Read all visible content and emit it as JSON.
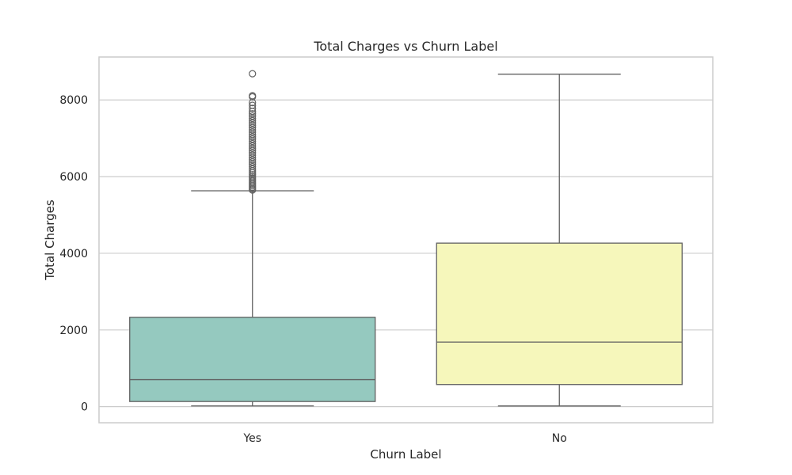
{
  "chart_data": {
    "type": "box",
    "title": "Total Charges vs Churn Label",
    "xlabel": "Churn Label",
    "ylabel": "Total Charges",
    "ylim": [
      -420,
      9120
    ],
    "yticks": [
      0,
      2000,
      4000,
      6000,
      8000
    ],
    "grid": true,
    "categories": [
      "Yes",
      "No"
    ],
    "colors": [
      "#95c9bf",
      "#f6f7bb"
    ],
    "line_color": "#616161",
    "boxes": [
      {
        "category": "Yes",
        "whisker_low": 19,
        "q1": 134,
        "median": 704,
        "q3": 2331,
        "whisker_high": 5630,
        "outliers": [
          5650,
          5680,
          5720,
          5760,
          5800,
          5840,
          5880,
          5920,
          5960,
          6000,
          6050,
          6100,
          6150,
          6200,
          6260,
          6320,
          6380,
          6440,
          6500,
          6560,
          6620,
          6680,
          6740,
          6800,
          6860,
          6920,
          6980,
          7040,
          7100,
          7160,
          7220,
          7280,
          7340,
          7400,
          7460,
          7520,
          7580,
          7640,
          7700,
          7780,
          7860,
          7930,
          8080,
          8110,
          8684
        ]
      },
      {
        "category": "No",
        "whisker_low": 18,
        "q1": 577,
        "median": 1684,
        "q3": 4265,
        "whisker_high": 8672,
        "outliers": []
      }
    ]
  }
}
